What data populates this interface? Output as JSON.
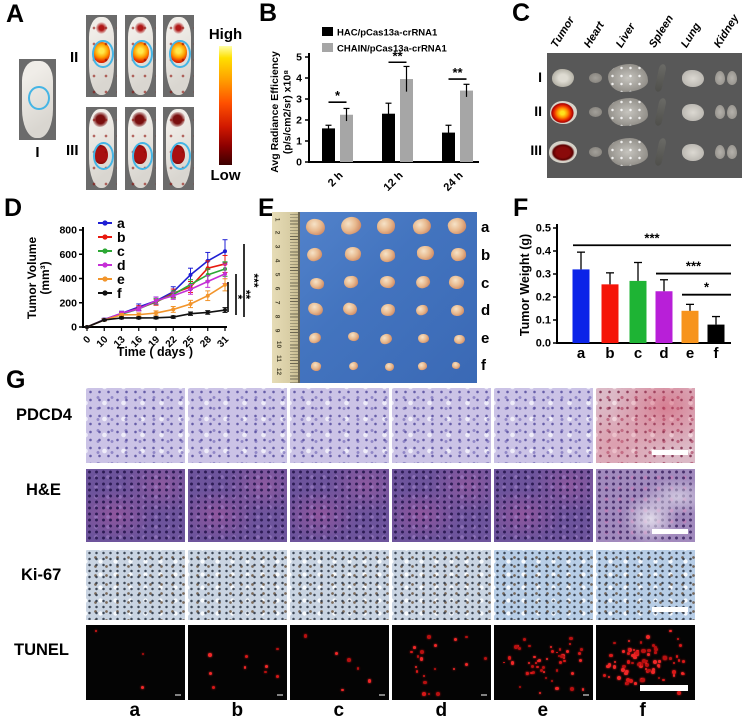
{
  "panels": {
    "A": {
      "label": "A",
      "mouse_single_label": "I",
      "row2_label": "II",
      "row3_label": "III",
      "colorbar_high": "High",
      "colorbar_low": "Low"
    },
    "B": {
      "label": "B"
    },
    "C": {
      "label": "C",
      "organ_labels": [
        "Tumor",
        "Heart",
        "Liver",
        "Spleen",
        "Lung",
        "Kidney"
      ],
      "row_labels": [
        "I",
        "II",
        "III"
      ]
    },
    "D": {
      "label": "D"
    },
    "E": {
      "label": "E",
      "row_labels": [
        "a",
        "b",
        "c",
        "d",
        "e",
        "f"
      ],
      "ruler_numbers": [
        "1",
        "2",
        "3",
        "4",
        "5",
        "6",
        "7",
        "8",
        "9",
        "10",
        "11",
        "12"
      ]
    },
    "F": {
      "label": "F"
    },
    "G": {
      "label": "G",
      "row_labels": [
        "PDCD4",
        "H&E",
        "Ki-67",
        "TUNEL"
      ],
      "col_labels": [
        "a",
        "b",
        "c",
        "d",
        "e",
        "f"
      ],
      "tunel_dot_counts": [
        3,
        9,
        6,
        20,
        48,
        85
      ]
    }
  },
  "chart_data": [
    {
      "id": "B",
      "type": "bar",
      "categories": [
        "2 h",
        "12 h",
        "24 h"
      ],
      "series": [
        {
          "name": "HAC/pCas13a-crRNA1",
          "color": "#000000",
          "values": [
            1.6,
            2.3,
            1.4
          ],
          "errors": [
            0.15,
            0.5,
            0.35
          ]
        },
        {
          "name": "CHAIN/pCas13a-crRNA1",
          "color": "#a6a6a6",
          "values": [
            2.25,
            3.95,
            3.4
          ],
          "errors": [
            0.3,
            0.6,
            0.3
          ]
        }
      ],
      "ylabel_lines": [
        "Avg Radiance Efficiency",
        "(p/s/cm2/sr) x10⁸"
      ],
      "ylim": [
        0,
        5
      ],
      "yticks": [
        0,
        1,
        2,
        3,
        4,
        5
      ],
      "significance": [
        {
          "label": "*",
          "y": 2.85
        },
        {
          "label": "**",
          "y": 4.75
        },
        {
          "label": "**",
          "y": 3.95
        }
      ]
    },
    {
      "id": "D",
      "type": "line",
      "x": [
        0,
        10,
        13,
        16,
        19,
        22,
        25,
        28,
        31
      ],
      "xlabel": "Time ( days )",
      "ylabel_lines": [
        "Tumor Volume",
        "(mm³)"
      ],
      "ylim": [
        0,
        800
      ],
      "yticks": [
        0,
        200,
        400,
        600,
        800
      ],
      "series": [
        {
          "name": "a",
          "color": "#1f1fd4",
          "values": [
            0,
            62,
            112,
            165,
            215,
            290,
            430,
            545,
            625
          ],
          "errors": [
            4,
            10,
            18,
            25,
            32,
            42,
            55,
            70,
            95
          ]
        },
        {
          "name": "b",
          "color": "#e8190f",
          "values": [
            0,
            60,
            110,
            155,
            205,
            278,
            330,
            485,
            520
          ],
          "errors": [
            4,
            10,
            15,
            20,
            25,
            35,
            45,
            60,
            70
          ]
        },
        {
          "name": "c",
          "color": "#2ca834",
          "values": [
            0,
            60,
            105,
            150,
            210,
            268,
            350,
            430,
            478
          ],
          "errors": [
            4,
            8,
            14,
            18,
            24,
            30,
            40,
            50,
            60
          ]
        },
        {
          "name": "d",
          "color": "#c52fd6",
          "values": [
            0,
            60,
            113,
            150,
            218,
            258,
            310,
            375,
            438
          ],
          "errors": [
            4,
            8,
            14,
            18,
            28,
            30,
            40,
            48,
            80
          ]
        },
        {
          "name": "e",
          "color": "#f2952c",
          "values": [
            0,
            58,
            100,
            102,
            115,
            145,
            190,
            258,
            348
          ],
          "errors": [
            4,
            8,
            12,
            14,
            18,
            24,
            30,
            40,
            50
          ]
        },
        {
          "name": "f",
          "color": "#111111",
          "values": [
            0,
            58,
            75,
            75,
            76,
            82,
            110,
            120,
            140
          ],
          "errors": [
            4,
            6,
            8,
            8,
            9,
            10,
            14,
            15,
            20
          ]
        }
      ],
      "significance": [
        {
          "label": "*"
        },
        {
          "label": "**"
        },
        {
          "label": "***"
        }
      ]
    },
    {
      "id": "F",
      "type": "bar",
      "categories": [
        "a",
        "b",
        "c",
        "d",
        "e",
        "f"
      ],
      "values": [
        0.32,
        0.255,
        0.27,
        0.225,
        0.14,
        0.08
      ],
      "errors": [
        0.075,
        0.05,
        0.08,
        0.05,
        0.028,
        0.035
      ],
      "colors": [
        "#0b24e8",
        "#f51408",
        "#1eb434",
        "#b81fd8",
        "#f7941d",
        "#000000"
      ],
      "ylabel": "Tumor Weight (g)",
      "ylim": [
        0,
        0.5
      ],
      "yticks": [
        "0.0",
        "0.1",
        "0.2",
        "0.3",
        "0.4",
        "0.5"
      ],
      "significance": [
        {
          "label": "***",
          "y": 0.425,
          "from": 0
        },
        {
          "label": "***",
          "y": 0.302,
          "from": 3
        },
        {
          "label": "*",
          "y": 0.21,
          "from": 4
        }
      ]
    }
  ]
}
